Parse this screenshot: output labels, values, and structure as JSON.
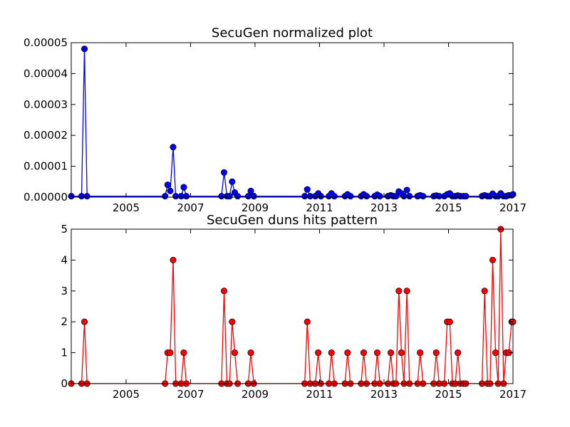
{
  "chart_data": [
    {
      "type": "line",
      "title": "SecuGen normalized plot",
      "xlabel": "",
      "ylabel": "",
      "xlim": [
        2003.3,
        2017.0
      ],
      "ylim": [
        0,
        5e-05
      ],
      "x_ticks": [
        "2005",
        "2007",
        "2009",
        "2011",
        "2013",
        "2015",
        "2017"
      ],
      "x_tick_values": [
        2005,
        2007,
        2009,
        2011,
        2013,
        2015,
        2017
      ],
      "y_ticks": [
        "0.00000",
        "0.00001",
        "0.00002",
        "0.00003",
        "0.00004",
        "0.00005"
      ],
      "y_tick_values": [
        0,
        1e-05,
        2e-05,
        3e-05,
        4e-05,
        5e-05
      ],
      "grid": false,
      "series": [
        {
          "color": "#0000ff",
          "marker": "circle",
          "x": [
            2003.3,
            2003.62,
            2003.71,
            2003.79,
            2006.21,
            2006.29,
            2006.37,
            2006.46,
            2006.54,
            2006.71,
            2006.79,
            2006.87,
            2007.96,
            2008.04,
            2008.13,
            2008.21,
            2008.29,
            2008.37,
            2008.46,
            2008.79,
            2008.87,
            2008.96,
            2010.54,
            2010.62,
            2010.71,
            2010.87,
            2010.96,
            2011.04,
            2011.29,
            2011.37,
            2011.46,
            2011.79,
            2011.87,
            2011.96,
            2012.29,
            2012.37,
            2012.46,
            2012.71,
            2012.79,
            2012.87,
            2013.12,
            2013.21,
            2013.29,
            2013.37,
            2013.46,
            2013.54,
            2013.62,
            2013.71,
            2013.79,
            2014.04,
            2014.12,
            2014.21,
            2014.54,
            2014.62,
            2014.71,
            2014.87,
            2014.96,
            2015.04,
            2015.12,
            2015.21,
            2015.29,
            2015.37,
            2015.46,
            2015.54,
            2016.04,
            2016.12,
            2016.21,
            2016.29,
            2016.37,
            2016.46,
            2016.54,
            2016.62,
            2016.71,
            2016.79,
            2016.87,
            2016.96,
            2017.0
          ],
          "y": [
            3e-07,
            3e-07,
            4.8e-05,
            3e-07,
            3e-07,
            4e-06,
            2e-06,
            1.62e-05,
            3e-07,
            3e-07,
            3.2e-06,
            3e-07,
            3e-07,
            8e-06,
            3e-07,
            3e-07,
            5e-06,
            1.5e-06,
            3e-07,
            3e-07,
            2e-06,
            3e-07,
            3e-07,
            2.5e-06,
            3e-07,
            3e-07,
            1.2e-06,
            3e-07,
            3e-07,
            1.2e-06,
            3e-07,
            3e-07,
            9e-07,
            3e-07,
            3e-07,
            9e-07,
            3e-07,
            3e-07,
            8e-07,
            3e-07,
            3e-07,
            6e-07,
            3e-07,
            3e-07,
            1.8e-06,
            1.2e-06,
            3e-07,
            2.3e-06,
            3e-07,
            3e-07,
            6e-07,
            3e-07,
            3e-07,
            5e-07,
            3e-07,
            3e-07,
            9e-07,
            1.2e-06,
            3e-07,
            3e-07,
            5e-07,
            3e-07,
            3e-07,
            3e-07,
            3e-07,
            6e-07,
            3e-07,
            3e-07,
            1.1e-06,
            3e-07,
            3e-07,
            1.2e-06,
            3e-07,
            3e-07,
            6e-07,
            6e-07,
            9e-07
          ]
        }
      ]
    },
    {
      "type": "line",
      "title": "SecuGen duns hits pattern",
      "xlabel": "",
      "ylabel": "",
      "xlim": [
        2003.3,
        2017.0
      ],
      "ylim": [
        0,
        5
      ],
      "x_ticks": [
        "2005",
        "2007",
        "2009",
        "2011",
        "2013",
        "2015",
        "2017"
      ],
      "x_tick_values": [
        2005,
        2007,
        2009,
        2011,
        2013,
        2015,
        2017
      ],
      "y_ticks": [
        "0",
        "1",
        "2",
        "3",
        "4",
        "5"
      ],
      "y_tick_values": [
        0,
        1,
        2,
        3,
        4,
        5
      ],
      "grid": false,
      "series": [
        {
          "color": "#ff0000",
          "marker": "circle",
          "x": [
            2003.3,
            2003.62,
            2003.71,
            2003.79,
            2006.21,
            2006.29,
            2006.37,
            2006.46,
            2006.54,
            2006.71,
            2006.79,
            2006.87,
            2007.96,
            2008.04,
            2008.13,
            2008.21,
            2008.29,
            2008.37,
            2008.46,
            2008.79,
            2008.87,
            2008.96,
            2010.54,
            2010.62,
            2010.71,
            2010.87,
            2010.96,
            2011.04,
            2011.29,
            2011.37,
            2011.46,
            2011.79,
            2011.87,
            2011.96,
            2012.29,
            2012.37,
            2012.46,
            2012.71,
            2012.79,
            2012.87,
            2013.12,
            2013.21,
            2013.29,
            2013.37,
            2013.46,
            2013.54,
            2013.62,
            2013.71,
            2013.79,
            2014.04,
            2014.12,
            2014.21,
            2014.54,
            2014.62,
            2014.71,
            2014.87,
            2014.96,
            2015.04,
            2015.12,
            2015.21,
            2015.29,
            2015.37,
            2015.46,
            2015.54,
            2016.04,
            2016.12,
            2016.21,
            2016.29,
            2016.37,
            2016.46,
            2016.54,
            2016.62,
            2016.71,
            2016.79,
            2016.87,
            2016.96,
            2017.0
          ],
          "y": [
            0,
            0,
            2,
            0,
            0,
            1,
            1,
            4,
            0,
            0,
            1,
            0,
            0,
            3,
            0,
            0,
            2,
            1,
            0,
            0,
            1,
            0,
            0,
            2,
            0,
            0,
            1,
            0,
            0,
            1,
            0,
            0,
            1,
            0,
            0,
            1,
            0,
            0,
            1,
            0,
            0,
            1,
            0,
            0,
            3,
            1,
            0,
            3,
            0,
            0,
            1,
            0,
            0,
            1,
            0,
            0,
            2,
            2,
            0,
            0,
            1,
            0,
            0,
            0,
            0,
            3,
            0,
            0,
            4,
            1,
            0,
            5,
            0,
            1,
            1,
            2,
            2
          ]
        }
      ]
    }
  ]
}
